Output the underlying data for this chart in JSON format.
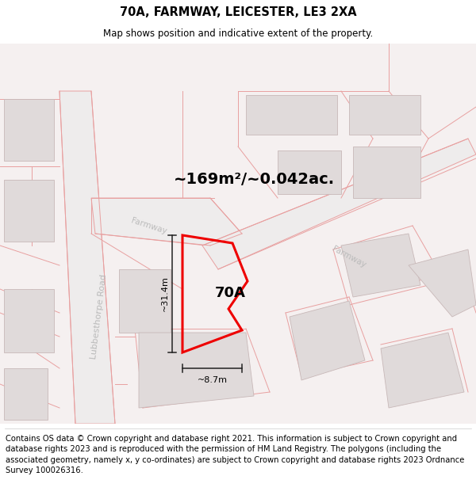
{
  "title": "70A, FARMWAY, LEICESTER, LE3 2XA",
  "subtitle": "Map shows position and indicative extent of the property.",
  "area_label": "~169m²/~0.042ac.",
  "property_label": "70A",
  "dim_height": "~31.4m",
  "dim_width": "~8.7m",
  "footer": "Contains OS data © Crown copyright and database right 2021. This information is subject to Crown copyright and database rights 2023 and is reproduced with the permission of HM Land Registry. The polygons (including the associated geometry, namely x, y co-ordinates) are subject to Crown copyright and database rights 2023 Ordnance Survey 100026316.",
  "bg_color": "#ffffff",
  "map_bg": "#f7f3f3",
  "road_line_color": "#e8a0a0",
  "building_fill": "#e0dada",
  "building_edge": "#c8b8b8",
  "plot_edge": "#ee0000",
  "plot_fill": "#ffffff",
  "dim_color": "#222222",
  "label_color": "#bbbbbb",
  "title_fontsize": 10.5,
  "subtitle_fontsize": 8.5,
  "area_fontsize": 14,
  "prop_fontsize": 13,
  "dim_fontsize": 8,
  "street_fontsize": 8,
  "footer_fontsize": 7.2
}
